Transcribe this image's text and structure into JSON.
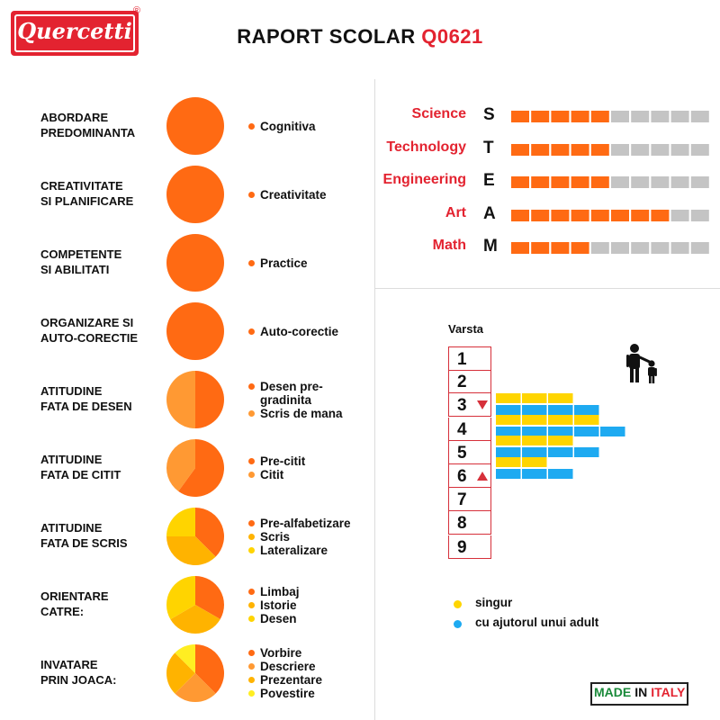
{
  "header": {
    "logo_text": "Quercetti",
    "logo_reg": "®",
    "title": "RAPORT SCOLAR",
    "code": "Q0621"
  },
  "colors": {
    "brand_red": "#e32330",
    "orange_dark": "#ff6a13",
    "orange_mid": "#ff9933",
    "yellow_orange": "#ffb300",
    "yellow": "#ffd400",
    "bright_yellow": "#ffee22",
    "grey": "#c4c4c4",
    "blue": "#1eaaf1",
    "bar_yellow": "#ffd500"
  },
  "chart_data": [
    {
      "type": "pie",
      "title": "",
      "rows": [
        {
          "label_line1": "ABORDARE",
          "label_line2": "PREDOMINANTA",
          "slices": [
            {
              "name": "Cognitiva",
              "value": 100,
              "color": "#ff6a13"
            }
          ]
        },
        {
          "label_line1": "CREATIVITATE",
          "label_line2": "SI PLANIFICARE",
          "slices": [
            {
              "name": "Creativitate",
              "value": 100,
              "color": "#ff6a13"
            }
          ]
        },
        {
          "label_line1": "COMPETENTE",
          "label_line2": "SI ABILITATI",
          "slices": [
            {
              "name": "Practice",
              "value": 100,
              "color": "#ff6a13"
            }
          ]
        },
        {
          "label_line1": "ORGANIZARE SI",
          "label_line2": "AUTO-CORECTIE",
          "slices": [
            {
              "name": "Auto-corectie",
              "value": 100,
              "color": "#ff6a13"
            }
          ]
        },
        {
          "label_line1": "ATITUDINE",
          "label_line2": "FATA DE DESEN",
          "slices": [
            {
              "name": "Desen pre-gradinita",
              "value": 50,
              "color": "#ff6a13"
            },
            {
              "name": "Scris de mana",
              "value": 50,
              "color": "#ff9933"
            }
          ]
        },
        {
          "label_line1": "ATITUDINE",
          "label_line2": "FATA DE CITIT",
          "slices": [
            {
              "name": "Pre-citit",
              "value": 60,
              "color": "#ff6a13"
            },
            {
              "name": "Citit",
              "value": 40,
              "color": "#ff9933"
            }
          ]
        },
        {
          "label_line1": "ATITUDINE",
          "label_line2": "FATA DE SCRIS",
          "slices": [
            {
              "name": "Pre-alfabetizare",
              "value": 37.5,
              "color": "#ff6a13"
            },
            {
              "name": "Scris",
              "value": 37.5,
              "color": "#ffb300"
            },
            {
              "name": "Lateralizare",
              "value": 25,
              "color": "#ffd400"
            }
          ]
        },
        {
          "label_line1": "ORIENTARE",
          "label_line2": "CATRE:",
          "slices": [
            {
              "name": "Limbaj",
              "value": 33.3,
              "color": "#ff6a13"
            },
            {
              "name": "Istorie",
              "value": 33.3,
              "color": "#ffb300"
            },
            {
              "name": "Desen",
              "value": 33.4,
              "color": "#ffd400"
            }
          ]
        },
        {
          "label_line1": "INVATARE",
          "label_line2": "PRIN JOACA:",
          "slices": [
            {
              "name": "Vorbire",
              "value": 37.5,
              "color": "#ff6a13"
            },
            {
              "name": "Descriere",
              "value": 25,
              "color": "#ff9933"
            },
            {
              "name": "Prezentare",
              "value": 25,
              "color": "#ffb300"
            },
            {
              "name": "Povestire",
              "value": 12.5,
              "color": "#ffee22"
            }
          ]
        }
      ]
    },
    {
      "type": "bar",
      "title": "",
      "scale_max": 10,
      "categories": [
        {
          "word": "Science",
          "letter": "S",
          "value": 5
        },
        {
          "word": "Technology",
          "letter": "T",
          "value": 5
        },
        {
          "word": "Engineering",
          "letter": "E",
          "value": 5
        },
        {
          "word": "Art",
          "letter": "A",
          "value": 8
        },
        {
          "word": "Math",
          "letter": "M",
          "value": 4
        }
      ]
    },
    {
      "type": "bar",
      "title": "Varsta",
      "ages": [
        "1",
        "2",
        "3",
        "4",
        "5",
        "6",
        "7",
        "8",
        "9"
      ],
      "range_start_age": "3",
      "range_end_age": "6",
      "series": [
        {
          "name": "singur",
          "color": "#ffd500",
          "values": [
            3,
            4,
            3,
            2
          ]
        },
        {
          "name": "cu ajutorul unui adult",
          "color": "#1eaaf1",
          "values": [
            4,
            5,
            4,
            3
          ]
        }
      ]
    }
  ],
  "footer": {
    "made": "MADE",
    "in": "IN",
    "italy": "ITALY"
  }
}
